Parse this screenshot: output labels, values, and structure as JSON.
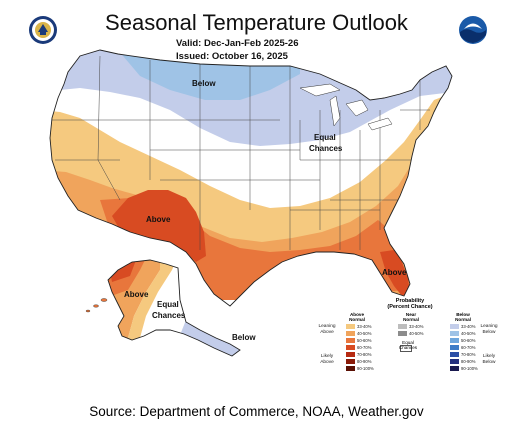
{
  "header": {
    "title": "Seasonal Temperature Outlook",
    "valid_label": "Valid:",
    "valid_value": "Dec-Jan-Feb 2025-26",
    "issued_label": "Issued:",
    "issued_value": "October 16, 2025"
  },
  "regions": {
    "below_north": "Below",
    "equal_chances_midwest": [
      "Equal",
      "Chances"
    ],
    "above_southwest": "Above",
    "above_florida": "Above",
    "above_alaska": "Above",
    "equal_chances_alaska": [
      "Equal",
      "Chances"
    ],
    "below_alaska_panhandle": "Below"
  },
  "legend": {
    "title": [
      "Probability",
      "(Percent Chance)"
    ],
    "columns": [
      {
        "header": [
          "Above",
          "Normal"
        ],
        "items": [
          {
            "label": "33-40%",
            "color": "#f5c97f"
          },
          {
            "label": "40-50%",
            "color": "#f0a45c"
          },
          {
            "label": "50-60%",
            "color": "#e8763c"
          },
          {
            "label": "60-70%",
            "color": "#d84b22"
          },
          {
            "label": "70-80%",
            "color": "#b62a12"
          },
          {
            "label": "80-90%",
            "color": "#8a1a08"
          },
          {
            "label": "90-100%",
            "color": "#5a1004"
          }
        ]
      },
      {
        "header": [
          "Near",
          "Normal"
        ],
        "items": [
          {
            "label": "33-40%",
            "color": "#bdbdbd"
          },
          {
            "label": "40-50%",
            "color": "#8c8c8c"
          }
        ]
      },
      {
        "header": [
          "Below",
          "Normal"
        ],
        "items": [
          {
            "label": "33-40%",
            "color": "#c3cdea"
          },
          {
            "label": "40-50%",
            "color": "#9fc3e6"
          },
          {
            "label": "50-60%",
            "color": "#6ea6dc"
          },
          {
            "label": "60-70%",
            "color": "#3d7cc7"
          },
          {
            "label": "70-80%",
            "color": "#2c4fa6"
          },
          {
            "label": "80-90%",
            "color": "#24307e"
          },
          {
            "label": "90-100%",
            "color": "#1a1a4f"
          }
        ]
      }
    ],
    "equal_chances_label": [
      "Equal",
      "Chances"
    ],
    "leaning_above": [
      "Leaning",
      "Above"
    ],
    "likely_above": [
      "Likely",
      "Above"
    ],
    "leaning_below": [
      "Leaning",
      "Below"
    ],
    "likely_below": [
      "Likely",
      "Below"
    ]
  },
  "colors": {
    "below_33_40": "#c3cdea",
    "below_40_50": "#9fc3e6",
    "above_33_40": "#f5c97f",
    "above_40_50": "#f0a45c",
    "above_50_60": "#e8763c",
    "above_60_70": "#d84b22",
    "equal_chances": "#ffffff",
    "boundary": "#222222"
  },
  "footer": {
    "source": "Source: Department of Commerce, NOAA, Weather.gov"
  }
}
